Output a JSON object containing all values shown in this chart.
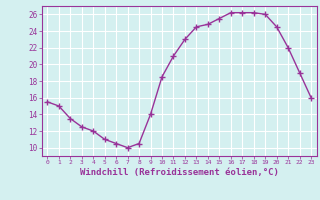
{
  "x": [
    0,
    1,
    2,
    3,
    4,
    5,
    6,
    7,
    8,
    9,
    10,
    11,
    12,
    13,
    14,
    15,
    16,
    17,
    18,
    19,
    20,
    21,
    22,
    23
  ],
  "y": [
    15.5,
    15.0,
    13.5,
    12.5,
    12.0,
    11.0,
    10.5,
    10.0,
    10.5,
    14.0,
    18.5,
    21.0,
    23.0,
    24.5,
    24.8,
    25.5,
    26.2,
    26.2,
    26.2,
    26.0,
    24.5,
    22.0,
    19.0,
    16.0
  ],
  "line_color": "#993399",
  "marker": "+",
  "marker_size": 4,
  "xlabel": "Windchill (Refroidissement éolien,°C)",
  "xlabel_fontsize": 6.5,
  "background_color": "#d4f0f0",
  "grid_color": "#ffffff",
  "tick_color": "#993399",
  "label_color": "#993399",
  "ylim": [
    9,
    27
  ],
  "yticks": [
    10,
    12,
    14,
    16,
    18,
    20,
    22,
    24,
    26
  ],
  "xlim": [
    -0.5,
    23.5
  ],
  "xticks": [
    0,
    1,
    2,
    3,
    4,
    5,
    6,
    7,
    8,
    9,
    10,
    11,
    12,
    13,
    14,
    15,
    16,
    17,
    18,
    19,
    20,
    21,
    22,
    23
  ],
  "line_width": 1.0
}
